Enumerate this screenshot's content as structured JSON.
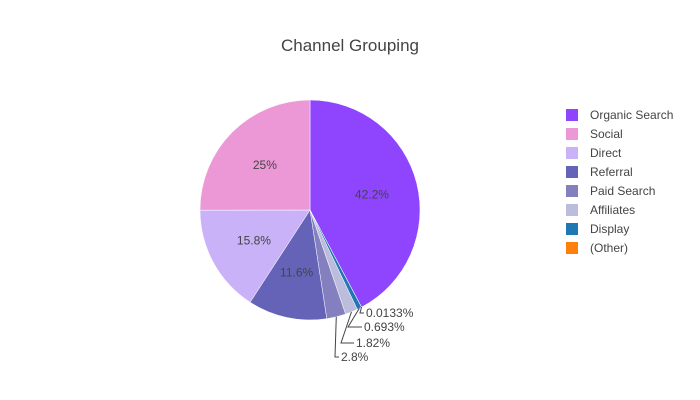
{
  "chart_data": {
    "type": "pie",
    "title": "Channel Grouping",
    "slices": [
      {
        "label": "Organic Search",
        "value": 42.2,
        "text": "42.2%",
        "color": "#8f45fd"
      },
      {
        "label": "(Other)",
        "value": 0.0133,
        "text": "0.0133%",
        "color": "#ff7f0e"
      },
      {
        "label": "Display",
        "value": 0.693,
        "text": "0.693%",
        "color": "#1f77b4"
      },
      {
        "label": "Affiliates",
        "value": 1.82,
        "text": "1.82%",
        "color": "#bcbddc"
      },
      {
        "label": "Paid Search",
        "value": 2.8,
        "text": "2.8%",
        "color": "#8480c0"
      },
      {
        "label": "Referral",
        "value": 11.6,
        "text": "11.6%",
        "color": "#6563b8"
      },
      {
        "label": "Direct",
        "value": 15.8,
        "text": "15.8%",
        "color": "#c9b2f7"
      },
      {
        "label": "Social",
        "value": 25,
        "text": "25%",
        "color": "#ec98d6"
      }
    ],
    "legend": {
      "placement": "right",
      "entries": [
        "Organic Search",
        "Social",
        "Direct",
        "Referral",
        "Paid Search",
        "Affiliates",
        "Display",
        "(Other)"
      ]
    }
  }
}
